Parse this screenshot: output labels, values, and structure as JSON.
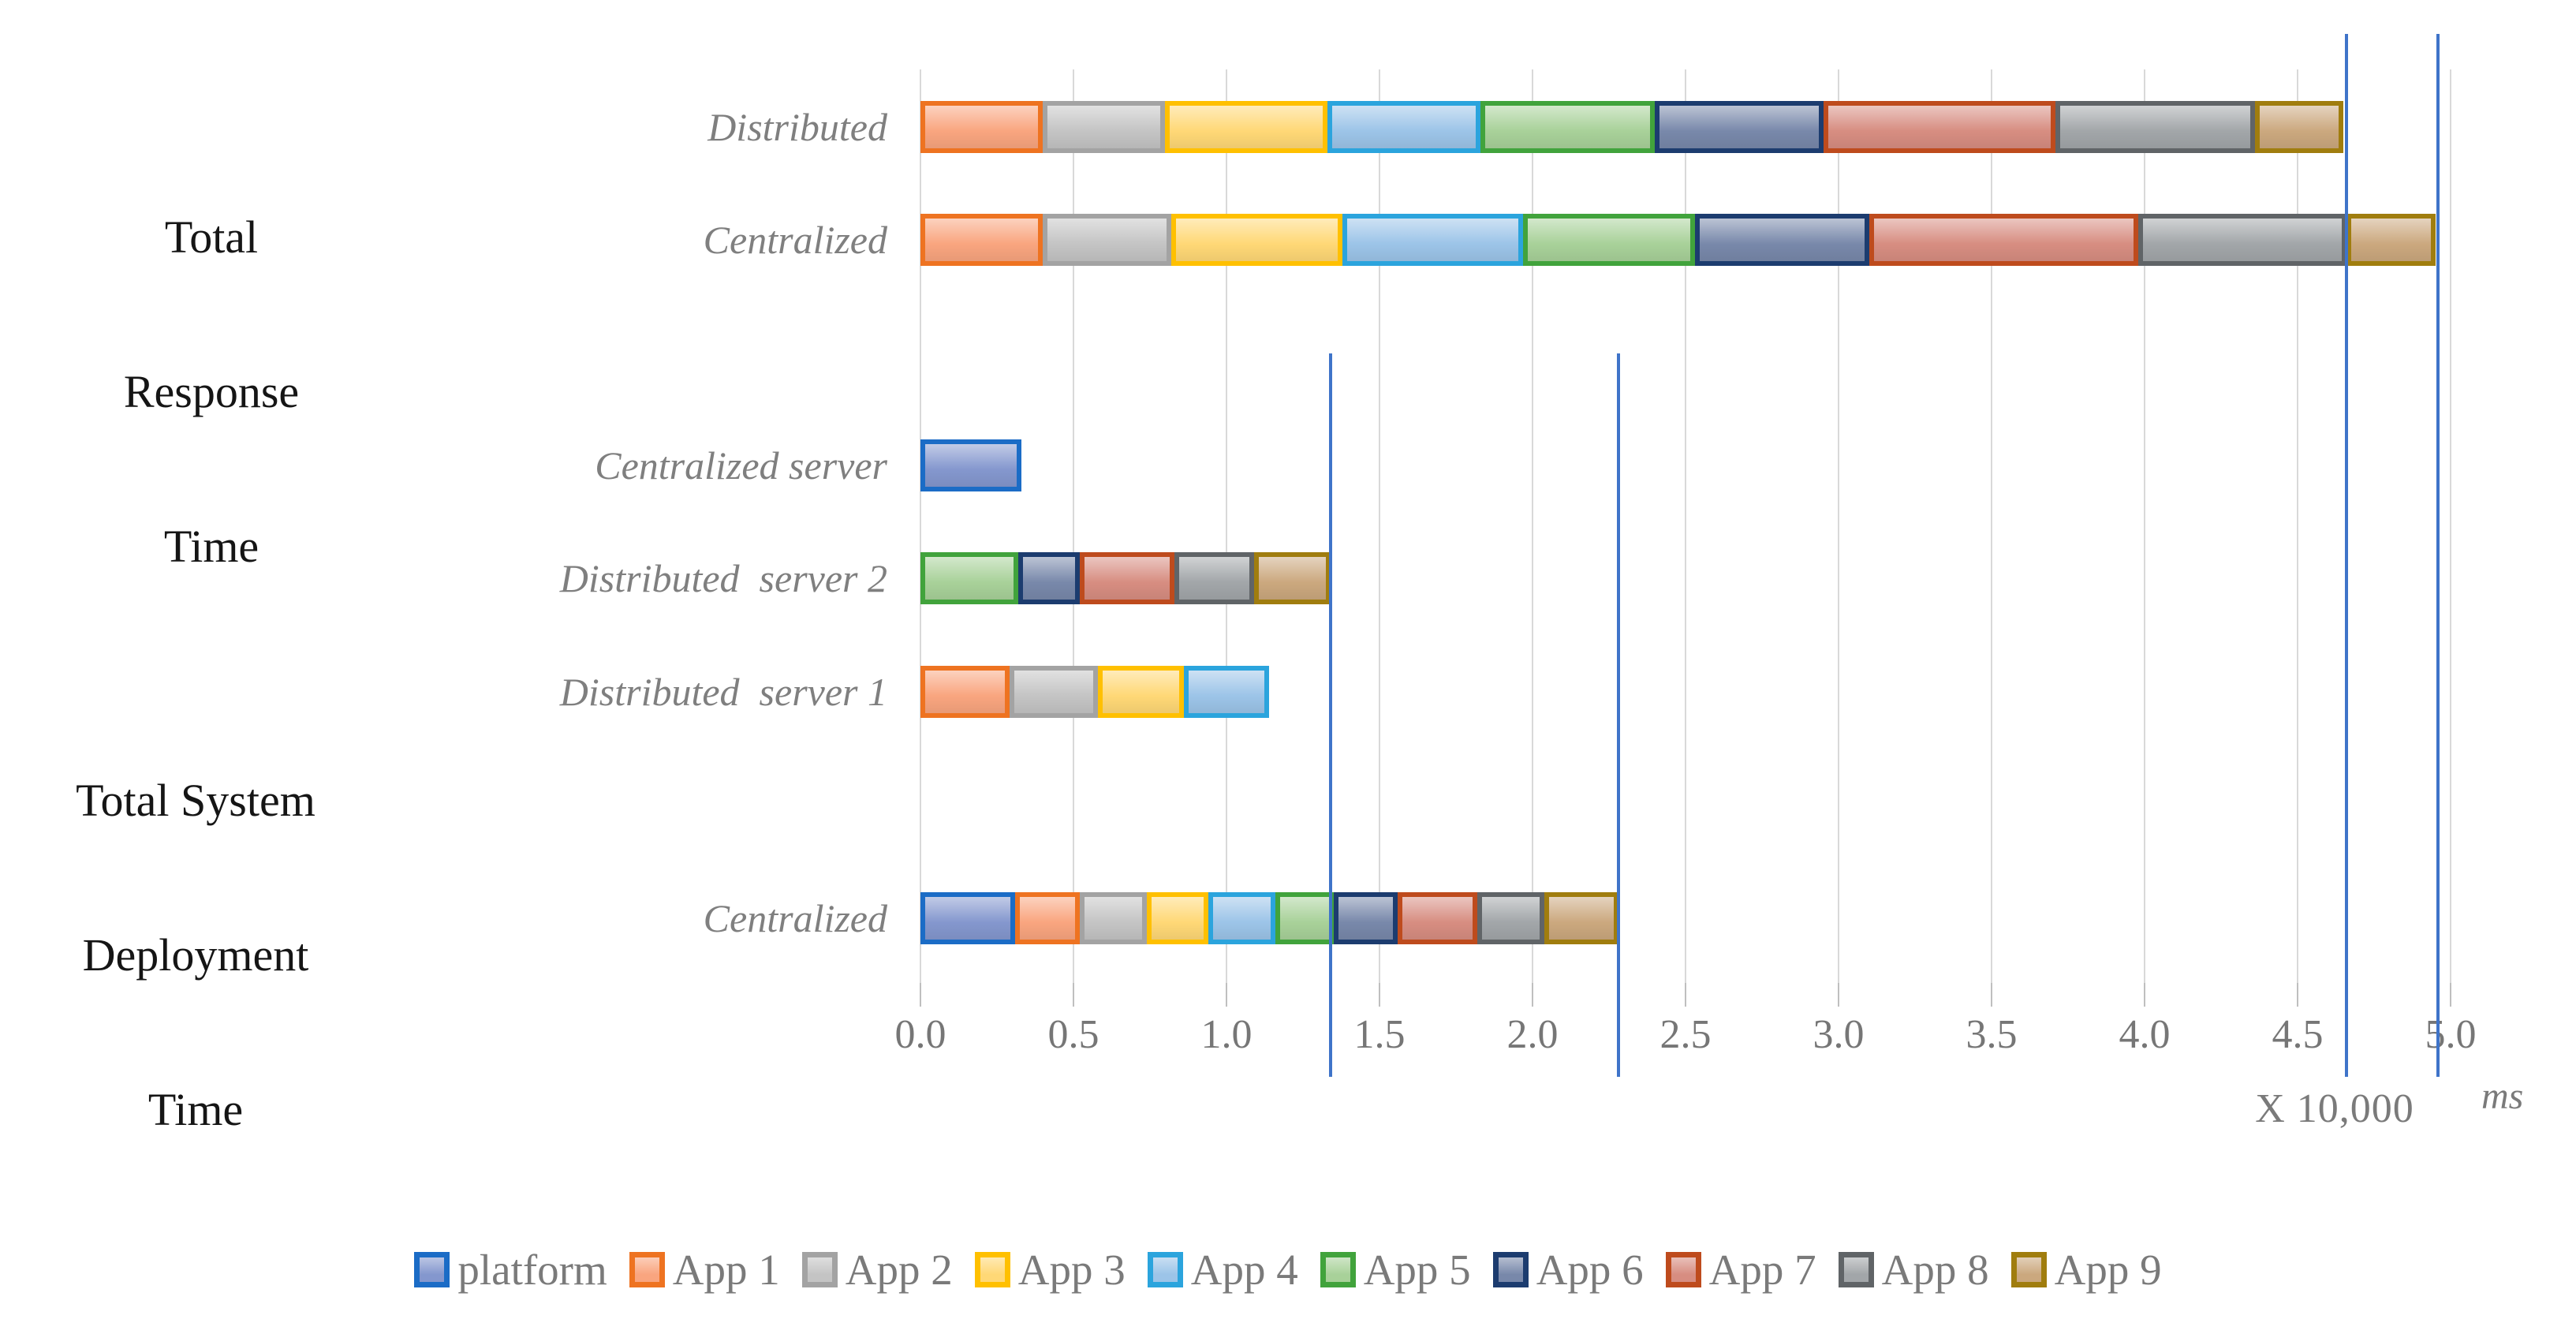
{
  "title_groups": {
    "response": {
      "lines": [
        "Total",
        "Response",
        "Time"
      ]
    },
    "deployment": {
      "lines": [
        "Total System",
        "Deployment",
        "Time"
      ]
    }
  },
  "axis": {
    "tick_labels": [
      "0.0",
      "0.5",
      "1.0",
      "1.5",
      "2.0",
      "2.5",
      "3.0",
      "3.5",
      "4.0",
      "4.5",
      "5.0"
    ],
    "scale_note": "X 10,000",
    "unit": "ms"
  },
  "chart_data": {
    "type": "bar",
    "orientation": "horizontal-stacked",
    "title": "",
    "xlabel": "X 10,000 ms",
    "ylabel": "",
    "xlim": [
      0,
      5.0
    ],
    "grid": true,
    "legend_position": "bottom",
    "series": [
      "platform",
      "App 1",
      "App 2",
      "App 3",
      "App 4",
      "App 5",
      "App 6",
      "App 7",
      "App 8",
      "App 9"
    ],
    "series_colors": [
      {
        "name": "platform",
        "fill": "#8497CE",
        "border": "#1B6CC6"
      },
      {
        "name": "App 1",
        "fill": "#F9A57F",
        "border": "#EE7321"
      },
      {
        "name": "App 2",
        "fill": "#C4C4C4",
        "border": "#A3A3A3"
      },
      {
        "name": "App 3",
        "fill": "#FFD876",
        "border": "#FFC000"
      },
      {
        "name": "App 4",
        "fill": "#9CC4E8",
        "border": "#2BA4DD"
      },
      {
        "name": "App 5",
        "fill": "#A8D199",
        "border": "#41A33C"
      },
      {
        "name": "App 6",
        "fill": "#7888AA",
        "border": "#1C3C6F"
      },
      {
        "name": "App 7",
        "fill": "#D78D81",
        "border": "#BE4B1D"
      },
      {
        "name": "App 8",
        "fill": "#A2A6A9",
        "border": "#606467"
      },
      {
        "name": "App 9",
        "fill": "#CBA87E",
        "border": "#A07D0E"
      }
    ],
    "groups": [
      {
        "group": "Total Response Time",
        "rows": [
          {
            "label": "Distributed",
            "values": [
              0,
              0.4,
              0.4,
              0.53,
              0.5,
              0.57,
              0.55,
              0.76,
              0.65,
              0.29
            ],
            "total": 4.65
          },
          {
            "label": "Centralized",
            "values": [
              0,
              0.4,
              0.42,
              0.56,
              0.59,
              0.56,
              0.57,
              0.88,
              0.68,
              0.29
            ],
            "total": 4.95
          }
        ]
      },
      {
        "group": "Total System Deployment Time",
        "rows": [
          {
            "label": "Centralized server",
            "values": [
              0.33,
              0,
              0,
              0,
              0,
              0,
              0,
              0,
              0,
              0
            ],
            "total": 0.33
          },
          {
            "label": "Distributed  server 2",
            "values": [
              0,
              0,
              0,
              0,
              0,
              0.32,
              0.2,
              0.31,
              0.26,
              0.25
            ],
            "total": 1.34
          },
          {
            "label": "Distributed  server 1",
            "values": [
              0,
              0.29,
              0.29,
              0.28,
              0.28,
              0,
              0,
              0,
              0,
              0
            ],
            "total": 1.14
          },
          {
            "label": "Centralized",
            "values": [
              0.31,
              0.21,
              0.22,
              0.2,
              0.22,
              0.19,
              0.21,
              0.26,
              0.22,
              0.24
            ],
            "total": 2.28
          }
        ]
      }
    ],
    "reference_lines": [
      {
        "value": 1.34,
        "extent": "partial"
      },
      {
        "value": 2.28,
        "extent": "partial"
      },
      {
        "value": 4.66,
        "extent": "full"
      },
      {
        "value": 4.96,
        "extent": "full"
      }
    ],
    "reference_line_color": "#3F74C9",
    "gridline_color": "#D9D9D9"
  }
}
